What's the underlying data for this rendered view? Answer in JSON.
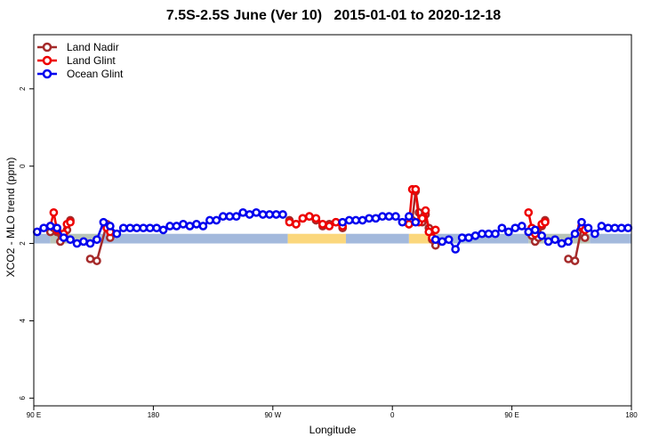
{
  "chart_data": {
    "type": "line",
    "title": "7.5S-2.5S June (Ver 10)   2015-01-01 to 2020-12-18",
    "xlabel": "Longitude",
    "ylabel": "XCO2 - MLO trend (ppm)",
    "xlim": [
      0,
      360
    ],
    "ylim": [
      -6.2,
      3.4
    ],
    "x_ticks": [
      {
        "value": 0,
        "label": "90 E"
      },
      {
        "value": 72,
        "label": "180"
      },
      {
        "value": 144,
        "label": "90 W"
      },
      {
        "value": 216,
        "label": "0"
      },
      {
        "value": 288,
        "label": "90 E"
      },
      {
        "value": 360,
        "label": "180"
      }
    ],
    "y_ticks": [
      {
        "value": 2,
        "label": "2"
      },
      {
        "value": 0,
        "label": "0"
      },
      {
        "value": -2,
        "label": "2"
      },
      {
        "value": -4,
        "label": "4"
      },
      {
        "value": -6,
        "label": "6"
      }
    ],
    "grid": false,
    "legend_position": "top-left",
    "band_y": [
      -2.0,
      -1.75
    ],
    "surface_segments": [
      {
        "type": "ocean",
        "x": [
          0,
          10
        ],
        "color": "#a3b9dc"
      },
      {
        "type": "land",
        "x": [
          10,
          40
        ],
        "color": "#b8c4b8"
      },
      {
        "type": "ocean",
        "x": [
          40,
          153
        ],
        "color": "#a3b9dc"
      },
      {
        "type": "land",
        "x": [
          153,
          188
        ],
        "color": "#fbd77c"
      },
      {
        "type": "ocean",
        "x": [
          188,
          226
        ],
        "color": "#a3b9dc"
      },
      {
        "type": "land",
        "x": [
          226,
          243
        ],
        "color": "#fbd77c"
      },
      {
        "type": "ocean",
        "x": [
          243,
          298
        ],
        "color": "#a3b9dc"
      },
      {
        "type": "land",
        "x": [
          298,
          335
        ],
        "color": "#b8c4b8"
      },
      {
        "type": "ocean",
        "x": [
          335,
          360
        ],
        "color": "#a3b9dc"
      }
    ],
    "series": [
      {
        "name": "Land Nadir",
        "color": "#a52a2a",
        "points": [
          [
            10,
            -1.7
          ],
          [
            12,
            -1.6
          ],
          [
            14,
            -1.7
          ],
          [
            16,
            -1.95
          ],
          [
            18,
            -1.8
          ],
          [
            20,
            -1.65
          ],
          [
            22,
            -1.4
          ],
          [
            34,
            -2.4
          ],
          [
            38,
            -2.45
          ],
          [
            44,
            -1.5
          ],
          [
            46,
            -1.85
          ],
          [
            154,
            -1.4
          ],
          [
            158,
            -1.5
          ],
          [
            162,
            -1.35
          ],
          [
            166,
            -1.3
          ],
          [
            170,
            -1.4
          ],
          [
            174,
            -1.55
          ],
          [
            178,
            -1.5
          ],
          [
            182,
            -1.45
          ],
          [
            186,
            -1.6
          ],
          [
            226,
            -1.5
          ],
          [
            228,
            -1.4
          ],
          [
            230,
            -0.65
          ],
          [
            232,
            -1.2
          ],
          [
            234,
            -1.45
          ],
          [
            236,
            -1.25
          ],
          [
            238,
            -1.6
          ],
          [
            240,
            -1.9
          ],
          [
            242,
            -2.05
          ],
          [
            298,
            -1.7
          ],
          [
            300,
            -1.8
          ],
          [
            302,
            -1.95
          ],
          [
            304,
            -1.85
          ],
          [
            306,
            -1.55
          ],
          [
            308,
            -1.4
          ],
          [
            322,
            -2.4
          ],
          [
            326,
            -2.45
          ],
          [
            330,
            -1.6
          ],
          [
            332,
            -1.85
          ]
        ]
      },
      {
        "name": "Land Glint",
        "color": "#ee0000",
        "points": [
          [
            10,
            -1.55
          ],
          [
            12,
            -1.2
          ],
          [
            14,
            -1.65
          ],
          [
            18,
            -1.75
          ],
          [
            20,
            -1.5
          ],
          [
            22,
            -1.45
          ],
          [
            44,
            -1.6
          ],
          [
            46,
            -1.7
          ],
          [
            154,
            -1.45
          ],
          [
            158,
            -1.5
          ],
          [
            162,
            -1.35
          ],
          [
            166,
            -1.3
          ],
          [
            170,
            -1.35
          ],
          [
            174,
            -1.5
          ],
          [
            178,
            -1.55
          ],
          [
            182,
            -1.45
          ],
          [
            186,
            -1.55
          ],
          [
            226,
            -1.5
          ],
          [
            228,
            -0.6
          ],
          [
            230,
            -0.6
          ],
          [
            232,
            -1.45
          ],
          [
            234,
            -1.35
          ],
          [
            236,
            -1.15
          ],
          [
            238,
            -1.7
          ],
          [
            240,
            -1.85
          ],
          [
            242,
            -1.65
          ],
          [
            298,
            -1.2
          ],
          [
            300,
            -1.6
          ],
          [
            302,
            -1.75
          ],
          [
            306,
            -1.5
          ],
          [
            308,
            -1.45
          ],
          [
            330,
            -1.55
          ],
          [
            332,
            -1.65
          ]
        ]
      },
      {
        "name": "Ocean Glint",
        "color": "#0000ee",
        "points": [
          [
            2,
            -1.7
          ],
          [
            6,
            -1.6
          ],
          [
            10,
            -1.55
          ],
          [
            14,
            -1.6
          ],
          [
            18,
            -1.85
          ],
          [
            22,
            -1.9
          ],
          [
            26,
            -2.0
          ],
          [
            30,
            -1.95
          ],
          [
            34,
            -2.0
          ],
          [
            38,
            -1.9
          ],
          [
            42,
            -1.45
          ],
          [
            46,
            -1.55
          ],
          [
            50,
            -1.75
          ],
          [
            54,
            -1.6
          ],
          [
            58,
            -1.6
          ],
          [
            62,
            -1.6
          ],
          [
            66,
            -1.6
          ],
          [
            70,
            -1.6
          ],
          [
            74,
            -1.6
          ],
          [
            78,
            -1.65
          ],
          [
            82,
            -1.55
          ],
          [
            86,
            -1.55
          ],
          [
            90,
            -1.5
          ],
          [
            94,
            -1.55
          ],
          [
            98,
            -1.5
          ],
          [
            102,
            -1.55
          ],
          [
            106,
            -1.4
          ],
          [
            110,
            -1.4
          ],
          [
            114,
            -1.3
          ],
          [
            118,
            -1.3
          ],
          [
            122,
            -1.3
          ],
          [
            126,
            -1.2
          ],
          [
            130,
            -1.25
          ],
          [
            134,
            -1.2
          ],
          [
            138,
            -1.25
          ],
          [
            142,
            -1.25
          ],
          [
            146,
            -1.25
          ],
          [
            150,
            -1.25
          ],
          [
            186,
            -1.45
          ],
          [
            190,
            -1.4
          ],
          [
            194,
            -1.4
          ],
          [
            198,
            -1.4
          ],
          [
            202,
            -1.35
          ],
          [
            206,
            -1.35
          ],
          [
            210,
            -1.3
          ],
          [
            214,
            -1.3
          ],
          [
            218,
            -1.3
          ],
          [
            222,
            -1.45
          ],
          [
            226,
            -1.3
          ],
          [
            230,
            -1.45
          ],
          [
            242,
            -1.9
          ],
          [
            246,
            -1.95
          ],
          [
            250,
            -1.9
          ],
          [
            254,
            -2.15
          ],
          [
            258,
            -1.85
          ],
          [
            262,
            -1.85
          ],
          [
            266,
            -1.8
          ],
          [
            270,
            -1.75
          ],
          [
            274,
            -1.75
          ],
          [
            278,
            -1.75
          ],
          [
            282,
            -1.6
          ],
          [
            286,
            -1.7
          ],
          [
            290,
            -1.6
          ],
          [
            294,
            -1.55
          ],
          [
            298,
            -1.7
          ],
          [
            302,
            -1.65
          ],
          [
            306,
            -1.8
          ],
          [
            310,
            -1.95
          ],
          [
            314,
            -1.9
          ],
          [
            318,
            -2.0
          ],
          [
            322,
            -1.95
          ],
          [
            326,
            -1.75
          ],
          [
            330,
            -1.45
          ],
          [
            334,
            -1.6
          ],
          [
            338,
            -1.75
          ],
          [
            342,
            -1.55
          ],
          [
            346,
            -1.6
          ],
          [
            350,
            -1.6
          ],
          [
            354,
            -1.6
          ],
          [
            358,
            -1.6
          ]
        ]
      }
    ]
  }
}
